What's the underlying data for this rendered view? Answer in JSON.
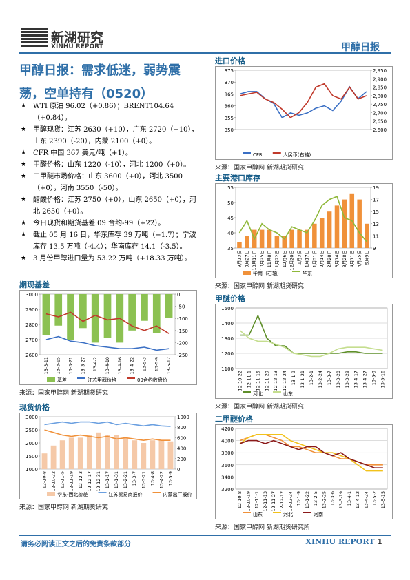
{
  "header": {
    "logo_cn": "新湖研究",
    "logo_en": "XINHU REPORT",
    "report": "甲醇日报"
  },
  "title": "甲醇日报：需求低迷，弱势震荡，空单持有（0520）",
  "bullets": [
    "WTI 原油 96.02（+0.86）；BRENT104.64（+0.84）。",
    "甲醇现货：江苏 2630（+10），广东 2720（+10），山东 2390（-20），内蒙 2100（+0）。",
    "CFR 中国 367 美元/吨（+1）。",
    "甲醛价格：山东 1220（-10），河北 1200（+0）。",
    "二甲醚市场价格：山东 3600（+0），河北 3500（+0），河南 3550（-50）。",
    "醋酸价格：江苏 2750（+0），山东 2650（+0），河北 2650（+0）。",
    "今日现货和期货基差 09 合约-99（+22）。",
    "截止 05 月 16 日，华东库存 39 万吨（+1.7）；宁波库存 13.5 万吨（-4.4）；华南库存 14.1（-3.5）。",
    "3 月份甲醇进口量为 53.22 万吨（+18.33 万吨）。"
  ],
  "charts": [
    {
      "section": "进口价格",
      "type": "line",
      "categories": [
        null,
        null,
        null,
        null,
        null,
        null,
        null,
        null,
        null,
        null,
        null,
        null,
        null,
        null,
        null,
        null
      ],
      "series": [
        {
          "name": "CFR",
          "color": "#3a6fc4",
          "values": [
            365,
            366,
            366,
            363,
            361,
            355,
            357,
            356,
            357,
            359,
            360,
            358,
            362,
            368,
            363,
            366
          ]
        },
        {
          "name": "人民币(右轴)",
          "color": "#c0392b",
          "axis": "y2",
          "values": [
            2800,
            2810,
            2820,
            2780,
            2760,
            2720,
            2670,
            2700,
            2760,
            2850,
            2870,
            2800,
            2780,
            2850,
            2780,
            2800
          ]
        }
      ],
      "ylim": [
        350,
        375
      ],
      "yticks": [
        350,
        355,
        360,
        365,
        370,
        375
      ],
      "y2lim": [
        2600,
        2950
      ],
      "y2ticks": [
        {
          "value": 2600,
          "label": "2,600"
        },
        {
          "value": 2650,
          "label": "2,650"
        },
        {
          "value": 2700,
          "label": "2,700"
        },
        {
          "value": 2750,
          "label": "2,750"
        },
        {
          "value": 2800,
          "label": "2,800"
        },
        {
          "value": 2850,
          "label": "2,850"
        },
        {
          "value": 2900,
          "label": "2,900"
        },
        {
          "value": 2950,
          "label": "2,950"
        }
      ],
      "grid": false,
      "source": "来源：国家甲醇网 新湖期货研究"
    },
    {
      "section": "主要港口库存",
      "type": "line",
      "categories": [
        "9月13日",
        "9月27日",
        "10月11日",
        "10月25日",
        "11月8日",
        "11月22日",
        "12月6日",
        "12月20日",
        "1月3日",
        "1月17日",
        "1月31日",
        "2月14日",
        "2月28日",
        "3月14日",
        "3月28日",
        "4月11日",
        "4月25日",
        "5月9日"
      ],
      "series": [
        {
          "name": "华南（右轴）",
          "color": "#f0913a",
          "axis": "y2",
          "bar": true,
          "values": [
            10,
            11,
            12,
            12,
            12,
            11,
            11,
            12,
            12,
            12,
            13,
            14,
            15,
            16,
            17,
            18,
            17,
            13
          ]
        },
        {
          "name": "华东",
          "color": "#8fb83a",
          "values": [
            40,
            44,
            38,
            43,
            41,
            40,
            38,
            42,
            41,
            40,
            44,
            49,
            51,
            52,
            45,
            44,
            40,
            37
          ]
        }
      ],
      "ylim": [
        35,
        55
      ],
      "yticks": [
        35,
        40,
        45,
        50,
        55
      ],
      "y2lim": [
        9,
        19
      ],
      "y2ticks": [
        9,
        11,
        13,
        15,
        17,
        19
      ],
      "grid": false,
      "source": "来源：国家甲醇网 新湖期货研究"
    },
    {
      "section": "期现基差",
      "type": "line",
      "categories": [
        "13-3-11",
        "13-3-15",
        "13-3-21",
        "13-3-27",
        "13-4-2",
        "13-4-10",
        "13-4-16",
        "13-4-22",
        "13-5-3",
        "13-5-9",
        "13-5-17"
      ],
      "series": [
        {
          "name": "基差",
          "color": "#8cc152",
          "axis": "y2",
          "bar": true,
          "values": [
            -170,
            -130,
            -190,
            -140,
            -200,
            -180,
            -200,
            -150,
            -110,
            -160,
            -99
          ]
        },
        {
          "name": "江苏甲醇价格",
          "color": "#3a6fc4",
          "values": [
            2700,
            2720,
            2690,
            2680,
            2660,
            2650,
            2640,
            2640,
            2650,
            2630,
            2640
          ]
        },
        {
          "name": "09合约收盘价",
          "color": "#c0392b",
          "values": [
            2870,
            2850,
            2880,
            2820,
            2860,
            2830,
            2840,
            2790,
            2760,
            2790,
            2740
          ]
        }
      ],
      "ylim": [
        2600,
        3000
      ],
      "yticks": [
        2600,
        2700,
        2800,
        2900,
        3000
      ],
      "y2lim": [
        -250,
        0
      ],
      "y2ticks": [
        -250,
        -200,
        -150,
        -100,
        -50,
        0
      ],
      "grid": false,
      "source": "来源：国家甲醇网 新湖期货研究"
    },
    {
      "section": "甲醚价格",
      "type": "line",
      "categories": [
        "12-10-22",
        "12-11-1",
        "12-11-15",
        "12-11-29",
        "12-12-13",
        "12-12-24",
        "13-1-9",
        "13-1-21",
        "13-2-1",
        "13-2-24",
        "13-3-7",
        "13-3-20",
        "13-3-29",
        "13-4-17",
        "13-4-27",
        "13-5-3",
        "13-5-16"
      ],
      "series": [
        {
          "name": "河北",
          "color": "#5f8f2a",
          "values": [
            1320,
            1320,
            1450,
            1300,
            1250,
            1250,
            1200,
            1200,
            1200,
            1200,
            1200,
            1200,
            1210,
            1210,
            1200,
            1200,
            1200
          ]
        },
        {
          "name": "山东",
          "color": "#c5de8f",
          "values": [
            1350,
            1300,
            1280,
            1280,
            1260,
            1240,
            1200,
            1190,
            1180,
            1180,
            1200,
            1230,
            1240,
            1240,
            1240,
            1230,
            1220
          ]
        }
      ],
      "ylim": [
        1100,
        1500
      ],
      "yticks": [
        1100,
        1200,
        1300,
        1400,
        1500
      ],
      "grid": true,
      "source": "来源：国家甲醇网 新湖期货研究"
    },
    {
      "section": "现货价格",
      "type": "line",
      "categories": [
        "12-10-8",
        "12-10-22",
        "12-11-5",
        "12-11-19",
        "12-12-3",
        "12-12-17",
        "12-12-31",
        "13-1-17",
        "13-1-31",
        "13-2-21",
        "13-3-7",
        "13-3-21",
        "13-4-8",
        "13-4-22",
        "13-5-9"
      ],
      "series": [
        {
          "name": "华东-西北价差",
          "color": "#f5c9a8",
          "axis": "y2",
          "bar": true,
          "values": [
            300,
            450,
            550,
            600,
            600,
            650,
            700,
            650,
            650,
            600,
            550,
            500,
            550,
            550,
            530
          ]
        },
        {
          "name": "江苏贸易商报价",
          "color": "#6a9fe0",
          "values": [
            2700,
            2750,
            2800,
            2750,
            2800,
            2800,
            2750,
            2800,
            2700,
            2750,
            2700,
            2650,
            2700,
            2650,
            2630
          ]
        },
        {
          "name": "内蒙出厂报价",
          "color": "#f0913a",
          "values": [
            2500,
            2400,
            2300,
            2250,
            2300,
            2250,
            2200,
            2250,
            2150,
            2200,
            2150,
            2100,
            2150,
            2100,
            2100
          ]
        }
      ],
      "ylim": [
        1000,
        3000
      ],
      "yticks": [
        1000,
        1500,
        2000,
        2500,
        3000
      ],
      "y2lim": [
        0,
        1000
      ],
      "y2ticks": [
        0,
        200,
        400,
        600,
        800,
        1000
      ],
      "grid": false,
      "source": "来源：国家甲醇网 新湖期货研究"
    },
    {
      "section": "二甲醚价格",
      "type": "line",
      "categories": [
        "12-10-8",
        "12-10-19",
        "12-11-1",
        "12-11-13",
        "12-11-27",
        "12-12-12",
        "12-12-24",
        "13-1-9",
        "13-1-22",
        "13-2-5",
        "13-2-25",
        "13-3-6",
        "13-3-19",
        "13-4-1",
        "13-4-12",
        "13-4-24",
        "13-5-2",
        "13-5-15"
      ],
      "series": [
        {
          "name": "山东",
          "color": "#f0913a",
          "values": [
            4000,
            4050,
            4100,
            4100,
            4050,
            4000,
            3900,
            3900,
            3850,
            3800,
            3800,
            3750,
            3700,
            3700,
            3650,
            3600,
            3600,
            3600
          ]
        },
        {
          "name": "河北",
          "color": "#f2c21b",
          "values": [
            3950,
            4050,
            4100,
            4100,
            4100,
            4100,
            4000,
            3950,
            3900,
            3850,
            3800,
            3800,
            3750,
            3700,
            3600,
            3500,
            3500,
            3500
          ]
        },
        {
          "name": "河南",
          "color": "#8b1a1a",
          "values": [
            3950,
            4000,
            4000,
            3950,
            4000,
            3950,
            3900,
            3850,
            3900,
            3900,
            3800,
            3750,
            3800,
            3700,
            3650,
            3600,
            3550,
            3550
          ]
        }
      ],
      "ylim": [
        3200,
        4200
      ],
      "yticks": [
        3200,
        3400,
        3600,
        3800,
        4000,
        4200
      ],
      "grid": true,
      "source": "来源：国家甲醇网 新湖期货研究所"
    }
  ],
  "footer": {
    "disclaimer": "请务必阅读正文之后的免责条款部分",
    "brand": "XINHU REPORT",
    "page": 1
  }
}
